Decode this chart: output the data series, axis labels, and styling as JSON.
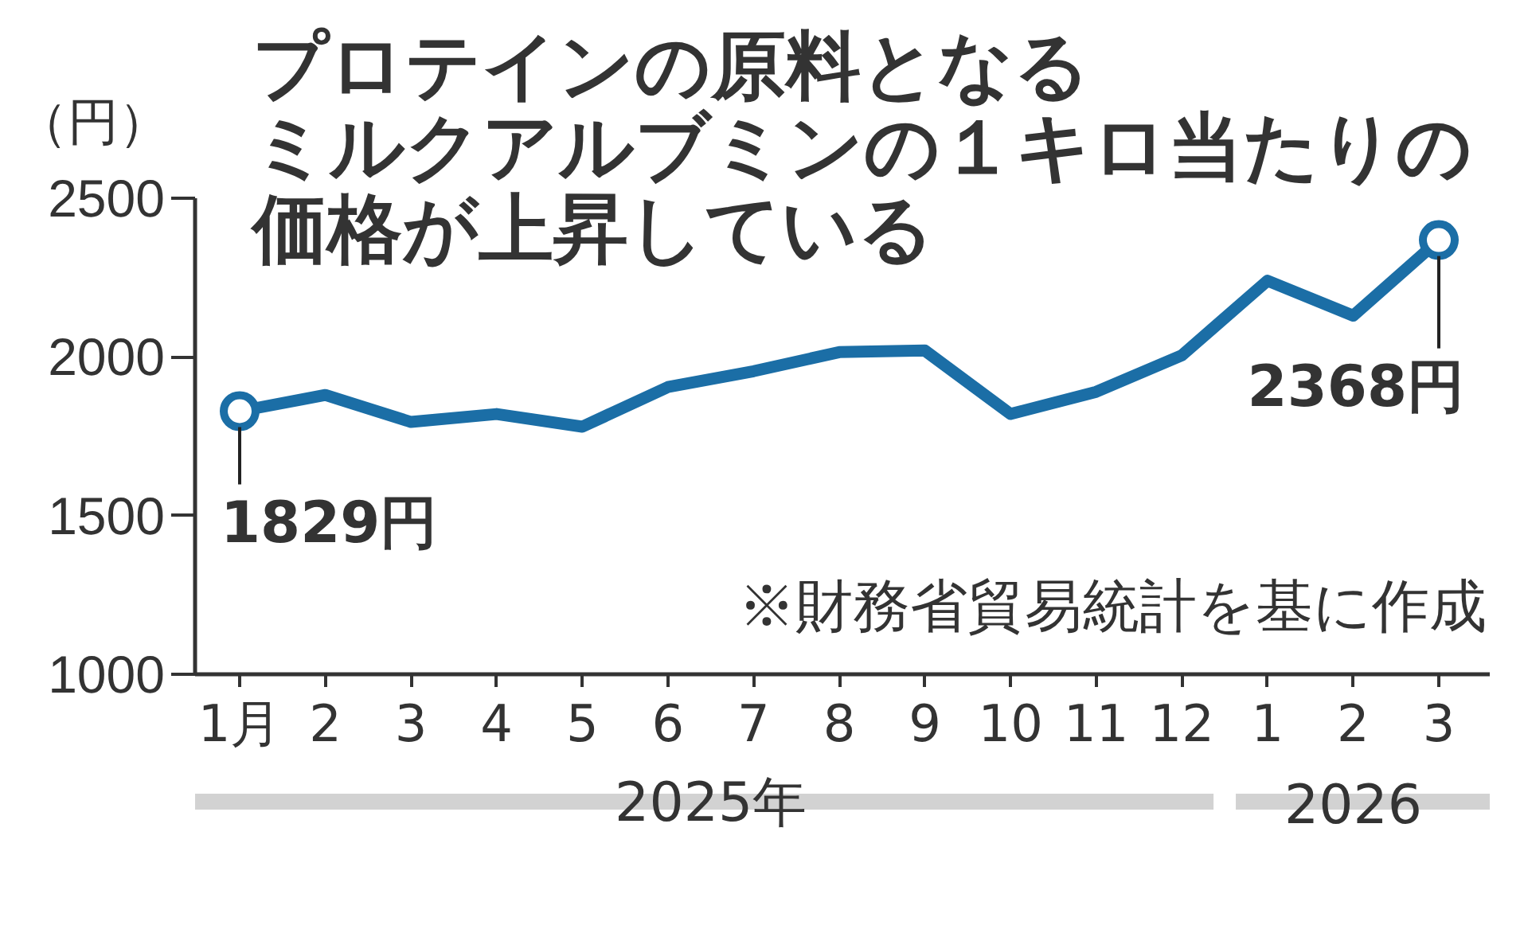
{
  "chart_data": {
    "type": "line",
    "title": "プロテインの原料となるミルクアルブミンの１キロ当たりの価格が上昇している",
    "ylabel": "（円）",
    "categories": [
      "1月",
      "2",
      "3",
      "4",
      "5",
      "6",
      "7",
      "8",
      "9",
      "10",
      "11",
      "12",
      "1",
      "2",
      "3"
    ],
    "series": [
      {
        "color": "#1b6ea6",
        "values": [
          1829,
          1880,
          1795,
          1820,
          1780,
          1905,
          1955,
          2015,
          2020,
          1820,
          1890,
          2005,
          2240,
          2130,
          2368
        ],
        "value_labels": [
          "1829円",
          null,
          null,
          null,
          null,
          null,
          null,
          null,
          null,
          null,
          null,
          null,
          null,
          null,
          "2368円"
        ]
      }
    ],
    "ylim": [
      1000,
      2500
    ],
    "yticks": [
      1000,
      1500,
      2000,
      2500
    ],
    "line_style": "solid",
    "annotations": [
      "※財務省貿易統計を基に作成",
      "2025年",
      "2026"
    ]
  }
}
